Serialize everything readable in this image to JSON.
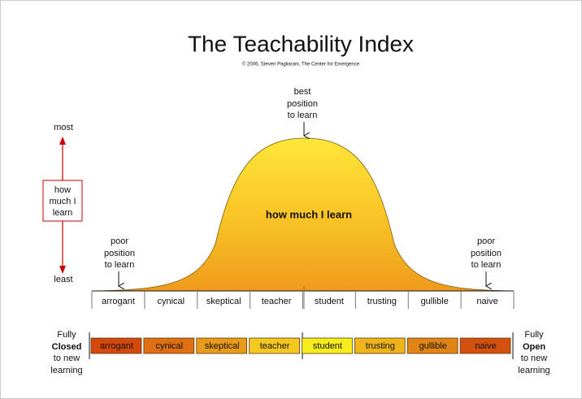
{
  "title": "The Teachability Index",
  "copyright": "© 2006, Steven Pagliarani, The Center for Emergence",
  "axis": {
    "top": "most",
    "bottom": "least",
    "box_label": [
      "how",
      "much I",
      "learn"
    ]
  },
  "curve_label": "how much I learn",
  "best_label": [
    "best",
    "position",
    "to learn"
  ],
  "poor_left": [
    "poor",
    "position",
    "to learn"
  ],
  "poor_right": [
    "poor",
    "position",
    "to learn"
  ],
  "categories": [
    "arrogant",
    "cynical",
    "skeptical",
    "teacher",
    "student",
    "trusting",
    "gullible",
    "naive"
  ],
  "spectrum": {
    "left": [
      "Fully",
      "Closed",
      "to new",
      "learning"
    ],
    "right": [
      "Fully",
      "Open",
      "to new",
      "learning"
    ],
    "cells": [
      "arrogant",
      "cynical",
      "skeptical",
      "teacher",
      "student",
      "trusting",
      "gullible",
      "naive"
    ]
  }
}
